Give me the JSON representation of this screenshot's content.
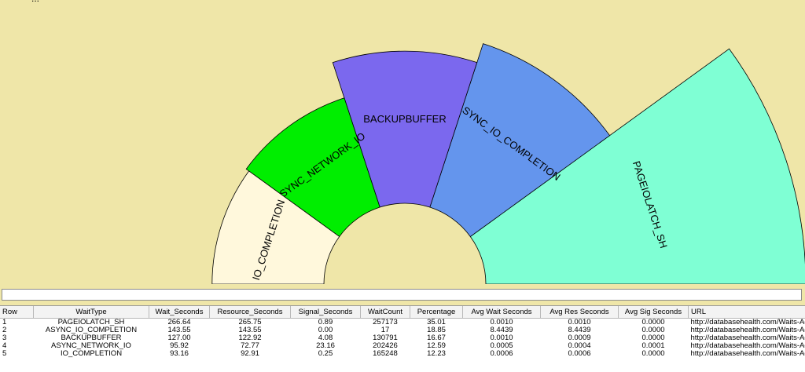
{
  "chart_data": {
    "type": "pie",
    "title": "...",
    "categories": [
      "PAGEIOLATCH_SH",
      "ASYNC_IO_COMPLETION",
      "BACKUPBUFFER",
      "ASYNC_NETWORK_IO",
      "IO_COMPLETION"
    ],
    "values": [
      266.64,
      143.55,
      127.0,
      95.92,
      93.16
    ],
    "colors": [
      "#7fffd4",
      "#6495ed",
      "#7b68ee",
      "#00ee00",
      "#fff8dc"
    ]
  },
  "table": {
    "columns": [
      "Row",
      "WaitType",
      "Wait_Seconds",
      "Resource_Seconds",
      "Signal_Seconds",
      "WaitCount",
      "Percentage",
      "Avg Wait Seconds",
      "Avg Res Seconds",
      "Avg Sig Seconds",
      "URL"
    ],
    "rows": [
      [
        "1",
        "PAGEIOLATCH_SH",
        "266.64",
        "265.75",
        "0.89",
        "257173",
        "35.01",
        "0.0010",
        "0.0010",
        "0.0000",
        "http://databasehealth.com/Waits-Advisor/PAGEIOLATCH_SH"
      ],
      [
        "2",
        "ASYNC_IO_COMPLETION",
        "143.55",
        "143.55",
        "0.00",
        "17",
        "18.85",
        "8.4439",
        "8.4439",
        "0.0000",
        "http://databasehealth.com/Waits-Advisor/ASYNC_IO_COMPLETION"
      ],
      [
        "3",
        "BACKUPBUFFER",
        "127.00",
        "122.92",
        "4.08",
        "130791",
        "16.67",
        "0.0010",
        "0.0009",
        "0.0000",
        "http://databasehealth.com/Waits-Advisor/BACKUPBUFFER"
      ],
      [
        "4",
        "ASYNC_NETWORK_IO",
        "95.92",
        "72.77",
        "23.16",
        "202426",
        "12.59",
        "0.0005",
        "0.0004",
        "0.0001",
        "http://databasehealth.com/Waits-Advisor/ASYNC_NETWORK_IO"
      ],
      [
        "5",
        "IO_COMPLETION",
        "93.16",
        "92.91",
        "0.25",
        "165248",
        "12.23",
        "0.0006",
        "0.0006",
        "0.0000",
        "http://databasehealth.com/Waits-Advisor/IO_COMPLETION"
      ]
    ]
  }
}
